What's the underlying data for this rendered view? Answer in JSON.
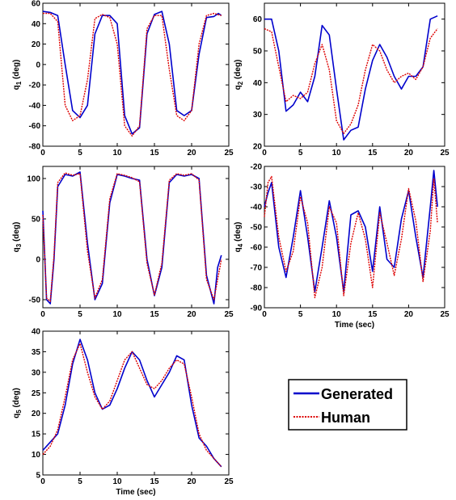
{
  "legend": {
    "generated_label": "Generated",
    "human_label": "Human",
    "generated_color": "#0000cc",
    "human_color": "#dd0000"
  },
  "chart_data": [
    {
      "type": "line",
      "name": "q1",
      "ylabel_main": "q",
      "ylabel_sub": "1",
      "ylabel_unit": " (deg)",
      "xlabel": "",
      "xlim": [
        0,
        25
      ],
      "ylim": [
        -80,
        60
      ],
      "xticks": [
        0,
        5,
        10,
        15,
        20,
        25
      ],
      "yticks": [
        -80,
        -60,
        -40,
        -20,
        0,
        20,
        40,
        60
      ],
      "series": [
        {
          "name": "Generated",
          "x": [
            0,
            1,
            2,
            3,
            4,
            5,
            6,
            7,
            8,
            9,
            10,
            11,
            12,
            13,
            14,
            15,
            16,
            17,
            18,
            19,
            20,
            21,
            22,
            23,
            23.6,
            24
          ],
          "y": [
            52,
            51,
            48,
            0,
            -45,
            -52,
            -40,
            30,
            48,
            48,
            40,
            -50,
            -68,
            -62,
            30,
            49,
            52,
            20,
            -45,
            -50,
            -45,
            10,
            46,
            47,
            50,
            48
          ]
        },
        {
          "name": "Human",
          "x": [
            0,
            1,
            2,
            3,
            4,
            5,
            6,
            7,
            8,
            9,
            10,
            11,
            12,
            13,
            14,
            15,
            16,
            17,
            18,
            19,
            20,
            21,
            22,
            23,
            24
          ],
          "y": [
            50,
            50,
            42,
            -40,
            -55,
            -50,
            -15,
            45,
            49,
            46,
            20,
            -60,
            -70,
            -60,
            35,
            48,
            48,
            -5,
            -50,
            -55,
            -45,
            20,
            48,
            50,
            48
          ]
        }
      ]
    },
    {
      "type": "line",
      "name": "q2",
      "ylabel_main": "q",
      "ylabel_sub": "2",
      "ylabel_unit": " (deg)",
      "xlabel": "",
      "xlim": [
        0,
        25
      ],
      "ylim": [
        20,
        65
      ],
      "xticks": [
        0,
        5,
        10,
        15,
        20,
        25
      ],
      "yticks": [
        20,
        30,
        40,
        50,
        60
      ],
      "series": [
        {
          "name": "Generated",
          "x": [
            0,
            1,
            2,
            3,
            4,
            5,
            6,
            7,
            8,
            9,
            10,
            11,
            12,
            13,
            14,
            15,
            16,
            17,
            18,
            19,
            20,
            21,
            22,
            23,
            24
          ],
          "y": [
            60,
            60,
            50,
            31,
            33,
            37,
            34,
            42,
            58,
            55,
            38,
            22,
            25,
            26,
            38,
            47,
            52,
            48,
            42,
            38,
            42,
            42,
            45,
            60,
            61
          ]
        },
        {
          "name": "Human",
          "x": [
            0,
            1,
            2,
            3,
            4,
            5,
            6,
            7,
            8,
            9,
            10,
            11,
            12,
            13,
            14,
            15,
            16,
            17,
            18,
            19,
            20,
            21,
            22,
            23,
            24
          ],
          "y": [
            57,
            56,
            45,
            34,
            36,
            35,
            37,
            46,
            52,
            44,
            28,
            24,
            27,
            33,
            44,
            52,
            50,
            44,
            40,
            42,
            43,
            41,
            45,
            54,
            57
          ]
        }
      ]
    },
    {
      "type": "line",
      "name": "q3",
      "ylabel_main": "q",
      "ylabel_sub": "3",
      "ylabel_unit": " (deg)",
      "xlabel": "",
      "xlim": [
        0,
        25
      ],
      "ylim": [
        -60,
        115
      ],
      "xticks": [
        0,
        5,
        10,
        15,
        20,
        25
      ],
      "yticks": [
        -50,
        0,
        50,
        100
      ],
      "series": [
        {
          "name": "Generated",
          "x": [
            0,
            0.5,
            1,
            1.5,
            2,
            3,
            4,
            5,
            6,
            7,
            8,
            9,
            10,
            11,
            12,
            13,
            14,
            15,
            16,
            17,
            18,
            19,
            20,
            21,
            22,
            23,
            23.5,
            24
          ],
          "y": [
            60,
            -50,
            -55,
            0,
            90,
            105,
            103,
            108,
            20,
            -50,
            -30,
            70,
            105,
            103,
            100,
            98,
            0,
            -45,
            -10,
            95,
            105,
            103,
            105,
            100,
            -20,
            -55,
            -10,
            5
          ]
        },
        {
          "name": "Human",
          "x": [
            0,
            0.5,
            1,
            1.5,
            2,
            3,
            4,
            5,
            6,
            7,
            8,
            9,
            10,
            11,
            12,
            13,
            14,
            15,
            16,
            17,
            18,
            19,
            20,
            21,
            22,
            23,
            24
          ],
          "y": [
            55,
            -48,
            -52,
            5,
            95,
            107,
            104,
            106,
            10,
            -48,
            -25,
            75,
            106,
            104,
            101,
            96,
            -5,
            -44,
            -5,
            98,
            106,
            104,
            106,
            98,
            -25,
            -50,
            0
          ]
        }
      ]
    },
    {
      "type": "line",
      "name": "q4",
      "ylabel_main": "q",
      "ylabel_sub": "4",
      "ylabel_unit": " (deg)",
      "xlabel": "Time (sec)",
      "xlim": [
        0,
        25
      ],
      "ylim": [
        -90,
        -20
      ],
      "xticks": [
        0,
        5,
        10,
        15,
        20,
        25
      ],
      "yticks": [
        -90,
        -80,
        -70,
        -60,
        -50,
        -40,
        -30,
        -20
      ],
      "series": [
        {
          "name": "Generated",
          "x": [
            0,
            0.5,
            1,
            2,
            3,
            4,
            5,
            6,
            7,
            8,
            9,
            10,
            11,
            12,
            13,
            14,
            15,
            16,
            17,
            18,
            19,
            20,
            21,
            22,
            23,
            23.5,
            24
          ],
          "y": [
            -40,
            -33,
            -28,
            -60,
            -75,
            -55,
            -32,
            -55,
            -82,
            -60,
            -37,
            -55,
            -82,
            -44,
            -42,
            -50,
            -72,
            -40,
            -66,
            -70,
            -46,
            -32,
            -55,
            -75,
            -40,
            -22,
            -40
          ]
        },
        {
          "name": "Human",
          "x": [
            0,
            0.5,
            1,
            2,
            3,
            4,
            5,
            6,
            7,
            8,
            9,
            10,
            11,
            12,
            13,
            14,
            15,
            16,
            17,
            18,
            19,
            20,
            21,
            22,
            23,
            23.5,
            24
          ],
          "y": [
            -45,
            -28,
            -25,
            -55,
            -72,
            -62,
            -35,
            -48,
            -85,
            -70,
            -40,
            -48,
            -84,
            -58,
            -43,
            -56,
            -80,
            -43,
            -58,
            -74,
            -56,
            -31,
            -47,
            -77,
            -52,
            -26,
            -48
          ]
        }
      ]
    },
    {
      "type": "line",
      "name": "q5",
      "ylabel_main": "q",
      "ylabel_sub": "5",
      "ylabel_unit": " (deg)",
      "xlabel": "Time (sec)",
      "xlim": [
        0,
        25
      ],
      "ylim": [
        5,
        40
      ],
      "xticks": [
        0,
        5,
        10,
        15,
        20,
        25
      ],
      "yticks": [
        5,
        10,
        15,
        20,
        25,
        30,
        35,
        40
      ],
      "series": [
        {
          "name": "Generated",
          "x": [
            0,
            1,
            2,
            3,
            4,
            5,
            6,
            7,
            8,
            9,
            10,
            11,
            12,
            13,
            14,
            15,
            16,
            17,
            18,
            19,
            20,
            21,
            22,
            23,
            24
          ],
          "y": [
            11,
            13,
            15,
            22,
            32,
            38,
            33,
            25,
            21,
            22,
            26,
            31,
            35,
            33,
            28,
            24,
            27,
            30,
            34,
            33,
            22,
            14,
            12,
            9,
            7
          ]
        },
        {
          "name": "Human",
          "x": [
            0,
            1,
            2,
            3,
            4,
            5,
            6,
            7,
            8,
            9,
            10,
            11,
            12,
            13,
            14,
            15,
            16,
            17,
            18,
            19,
            20,
            21,
            22,
            23,
            24
          ],
          "y": [
            10,
            12,
            16,
            24,
            33,
            37,
            30,
            24,
            21,
            23,
            28,
            33,
            35,
            31,
            27,
            26,
            28,
            31,
            33,
            32,
            24,
            15,
            11,
            9,
            7
          ]
        }
      ]
    }
  ]
}
